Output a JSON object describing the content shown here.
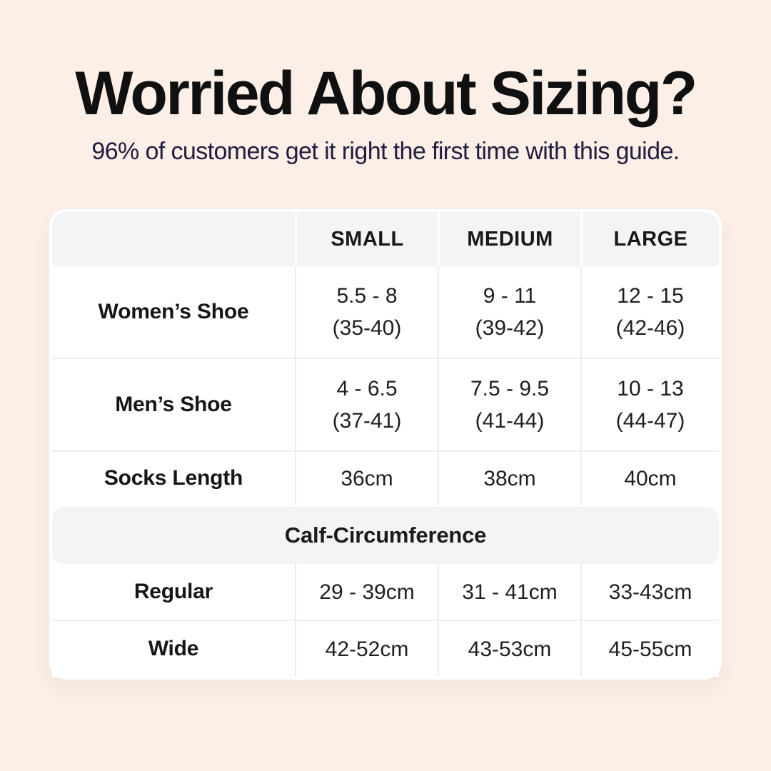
{
  "header": {
    "title": "Worried About Sizing?",
    "subtitle": "96% of customers get it right the first time with this guide."
  },
  "table": {
    "columns": [
      "",
      "SMALL",
      "MEDIUM",
      "LARGE"
    ],
    "rows": [
      {
        "label": "Women’s Shoe",
        "cells": [
          {
            "l1": "5.5 - 8",
            "l2": "(35-40)"
          },
          {
            "l1": "9 - 11",
            "l2": "(39-42)"
          },
          {
            "l1": "12 - 15",
            "l2": "(42-46)"
          }
        ]
      },
      {
        "label": "Men’s Shoe",
        "cells": [
          {
            "l1": "4 - 6.5",
            "l2": "(37-41)"
          },
          {
            "l1": "7.5 - 9.5",
            "l2": "(41-44)"
          },
          {
            "l1": "10 - 13",
            "l2": "(44-47)"
          }
        ]
      },
      {
        "label": "Socks Length",
        "cells": [
          {
            "l1": "36cm"
          },
          {
            "l1": "38cm"
          },
          {
            "l1": "40cm"
          }
        ]
      }
    ],
    "section_label": "Calf-Circumference",
    "calf_rows": [
      {
        "label": "Regular",
        "cells": [
          {
            "l1": "29 - 39cm"
          },
          {
            "l1": "31 - 41cm"
          },
          {
            "l1": "33-43cm"
          }
        ]
      },
      {
        "label": "Wide",
        "cells": [
          {
            "l1": "42-52cm"
          },
          {
            "l1": "43-53cm"
          },
          {
            "l1": "45-55cm"
          }
        ]
      }
    ]
  },
  "colors": {
    "background": "#fcefe8",
    "card": "#ffffff",
    "band": "#f4f4f5",
    "divider": "#ededef",
    "title_text": "#101010",
    "subtitle_text": "#211d3e",
    "table_text": "#1f1f23"
  }
}
